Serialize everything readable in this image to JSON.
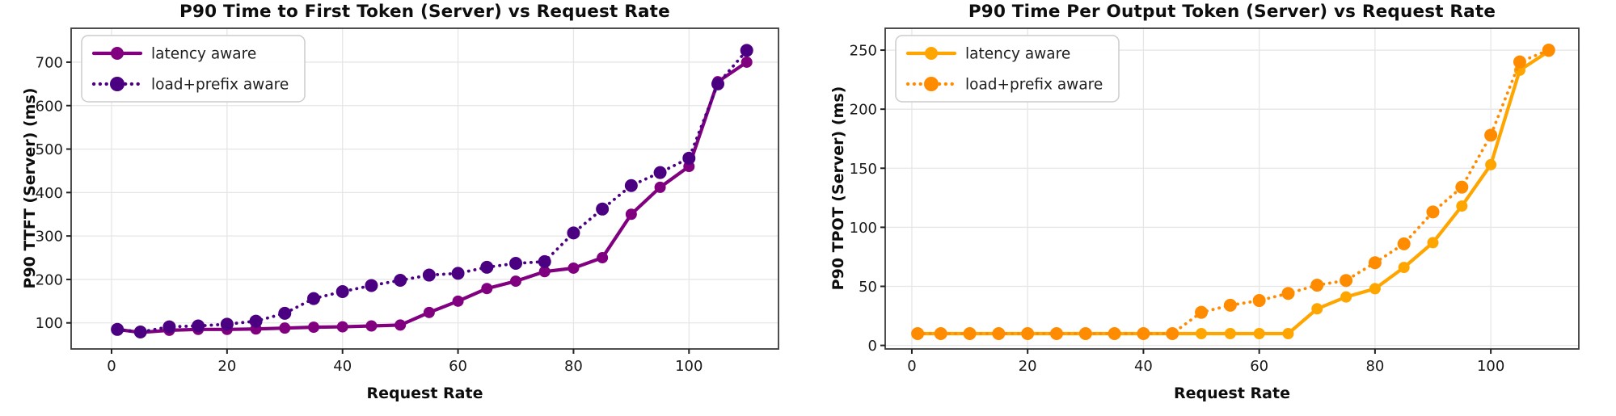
{
  "page": {
    "background": "#ffffff",
    "grid_color": "#e6e6e6",
    "spine_color": "#3a3a3a",
    "tick_label_color": "#1a1a1a"
  },
  "chart_data": [
    {
      "type": "line",
      "title": "P90 Time to First Token (Server) vs Request Rate",
      "xlabel": "Request Rate",
      "ylabel": "P90 TTFT (Server) (ms)",
      "grid": true,
      "legend_position": "upper left",
      "xlim": [
        -7,
        115.5
      ],
      "ylim": [
        40,
        778
      ],
      "xticks": [
        0,
        20,
        40,
        60,
        80,
        100
      ],
      "yticks": [
        100,
        200,
        300,
        400,
        500,
        600,
        700
      ],
      "x": [
        1,
        5,
        10,
        15,
        20,
        25,
        30,
        35,
        40,
        45,
        50,
        55,
        60,
        65,
        70,
        75,
        80,
        85,
        90,
        95,
        100,
        105,
        110
      ],
      "series": [
        {
          "name": "latency aware",
          "color": "#800080",
          "dash": "solid",
          "values": [
            85,
            78,
            83,
            85,
            85,
            86,
            88,
            90,
            91,
            93,
            95,
            124,
            150,
            179,
            196,
            218,
            226,
            250,
            350,
            412,
            460,
            655,
            700
          ]
        },
        {
          "name": "load+prefix aware",
          "color": "#4B0082",
          "dash": "dotted",
          "values": [
            85,
            79,
            91,
            93,
            97,
            104,
            122,
            156,
            172,
            186,
            198,
            210,
            214,
            228,
            237,
            241,
            307,
            362,
            416,
            446,
            479,
            650,
            727
          ]
        }
      ]
    },
    {
      "type": "line",
      "title": "P90 Time Per Output Token (Server) vs Request Rate",
      "xlabel": "Request Rate",
      "ylabel": "P90 TPOT (Server) (ms)",
      "grid": true,
      "legend_position": "upper left",
      "xlim": [
        -4.6,
        115.2
      ],
      "ylim": [
        -3,
        268.5
      ],
      "xticks": [
        0,
        20,
        40,
        60,
        80,
        100
      ],
      "yticks": [
        0,
        50,
        100,
        150,
        200,
        250
      ],
      "x": [
        1,
        5,
        10,
        15,
        20,
        25,
        30,
        35,
        40,
        45,
        50,
        55,
        60,
        65,
        70,
        75,
        80,
        85,
        90,
        95,
        100,
        105,
        110
      ],
      "series": [
        {
          "name": "latency aware",
          "color": "#FFA500",
          "dash": "solid",
          "values": [
            10,
            10,
            10,
            10,
            10,
            10,
            10,
            10,
            10,
            10,
            10,
            10,
            10,
            10,
            31,
            41,
            48,
            66,
            87,
            118,
            153,
            233,
            249
          ]
        },
        {
          "name": "load+prefix aware",
          "color": "#FF8C00",
          "dash": "dotted",
          "values": [
            10,
            10,
            10,
            10,
            10,
            10,
            10,
            10,
            10,
            10,
            28,
            34,
            38,
            44,
            51,
            55,
            70,
            86,
            113,
            134,
            178,
            240,
            250
          ]
        }
      ]
    }
  ]
}
